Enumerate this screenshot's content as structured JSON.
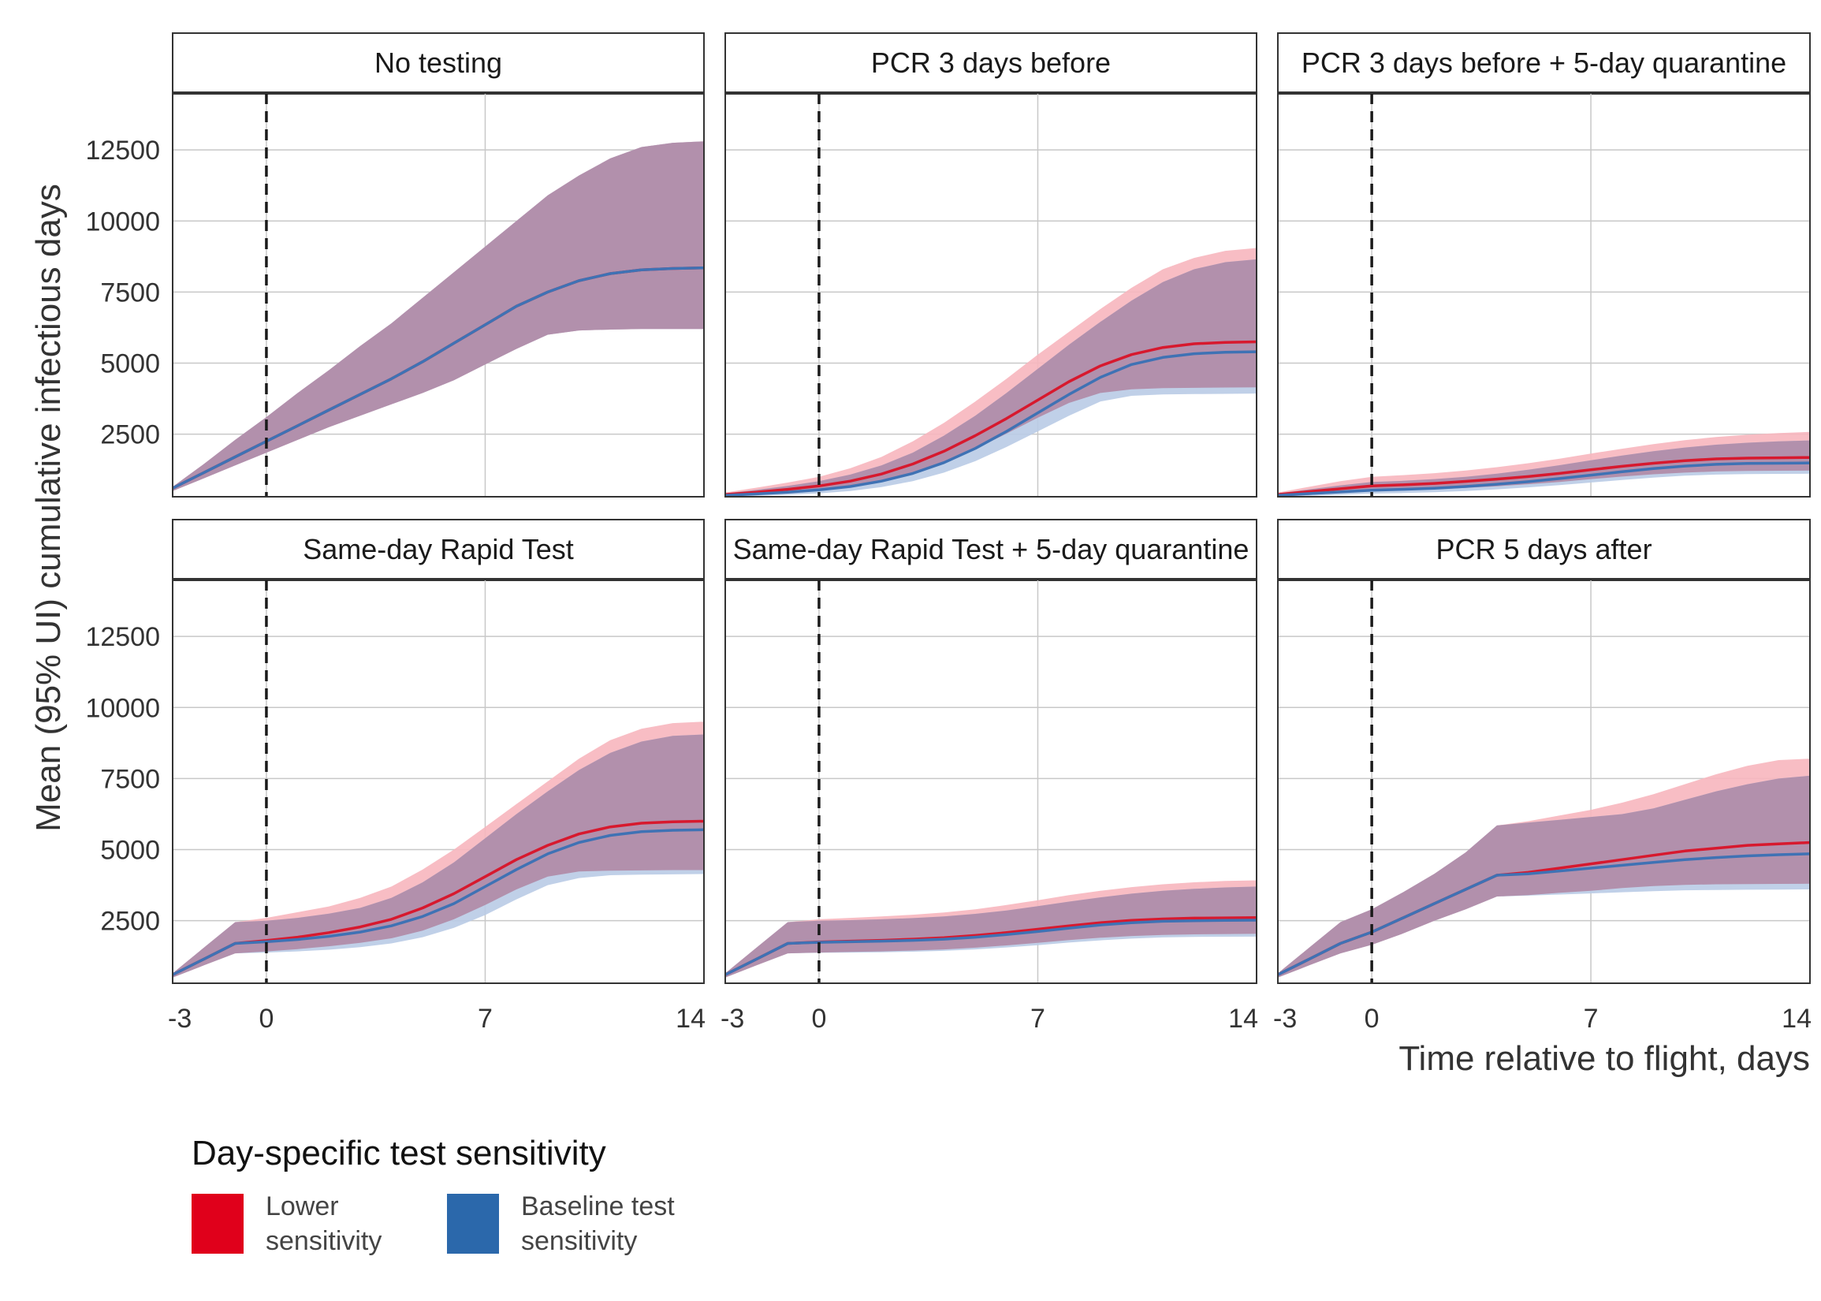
{
  "chart_data": {
    "type": "area",
    "xlabel": "Time relative to flight, days",
    "ylabel": "Mean (95% UI) cumulative infectious days",
    "xlim": [
      -3,
      14
    ],
    "ylim": [
      300,
      14500
    ],
    "x_ticks": [
      -3,
      0,
      7,
      14
    ],
    "y_ticks": [
      2500,
      5000,
      7500,
      10000,
      12500
    ],
    "vline_x": 0,
    "grid": true,
    "layout": "facets 2 rows x 3 columns, shared axes, legend bottom",
    "colors": {
      "Lower sensitivity": "#d7192e",
      "Baseline test sensitivity": "#3f72b4",
      "lower_ribbon": "#f7b6be",
      "baseline_ribbon": "#b9cbe6",
      "overlap_ribbon": "#b08aa6"
    },
    "legend": {
      "title": "Day-specific test sensitivity",
      "entries": [
        {
          "label_line1": "Lower",
          "label_line2": "sensitivity",
          "color": "#e0001b"
        },
        {
          "label_line1": "Baseline test",
          "label_line2": "sensitivity",
          "color": "#2b68ab"
        }
      ]
    },
    "panels": [
      {
        "title": "No testing",
        "x": [
          -3,
          -2,
          -1,
          0,
          1,
          2,
          3,
          4,
          5,
          6,
          7,
          8,
          9,
          10,
          11,
          12,
          13,
          14
        ],
        "series": [
          {
            "name": "Lower sensitivity",
            "values": [
              600,
              1150,
              1700,
              2250,
              2800,
              3350,
              3900,
              4450,
              5050,
              5700,
              6350,
              7000,
              7500,
              7900,
              8150,
              8280,
              8330,
              8350
            ],
            "lower": [
              500,
              950,
              1400,
              1850,
              2300,
              2750,
              3150,
              3550,
              3950,
              4400,
              4950,
              5500,
              6000,
              6150,
              6180,
              6200,
              6200,
              6200
            ],
            "upper": [
              650,
              1450,
              2300,
              3100,
              3950,
              4750,
              5600,
              6400,
              7300,
              8200,
              9100,
              10000,
              10900,
              11600,
              12200,
              12600,
              12750,
              12800
            ]
          },
          {
            "name": "Baseline test sensitivity",
            "values": [
              600,
              1150,
              1700,
              2250,
              2800,
              3350,
              3900,
              4450,
              5050,
              5700,
              6350,
              7000,
              7500,
              7900,
              8150,
              8280,
              8330,
              8350
            ],
            "lower": [
              500,
              950,
              1400,
              1850,
              2300,
              2750,
              3150,
              3550,
              3950,
              4400,
              4950,
              5500,
              6000,
              6150,
              6180,
              6200,
              6200,
              6200
            ],
            "upper": [
              650,
              1450,
              2300,
              3100,
              3950,
              4750,
              5600,
              6400,
              7300,
              8200,
              9100,
              10000,
              10900,
              11600,
              12200,
              12600,
              12750,
              12800
            ]
          }
        ]
      },
      {
        "title": "PCR 3 days before",
        "x": [
          -3,
          -2,
          -1,
          0,
          1,
          2,
          3,
          4,
          5,
          6,
          7,
          8,
          9,
          10,
          11,
          12,
          13,
          14
        ],
        "series": [
          {
            "name": "Lower sensitivity",
            "values": [
              380,
              460,
              560,
              680,
              850,
              1100,
              1450,
              1900,
              2450,
              3050,
              3700,
              4350,
              4900,
              5300,
              5550,
              5680,
              5730,
              5750
            ],
            "lower": [
              300,
              360,
              430,
              520,
              650,
              840,
              1120,
              1500,
              1980,
              2520,
              3080,
              3600,
              3950,
              4080,
              4120,
              4130,
              4140,
              4150
            ],
            "upper": [
              450,
              620,
              800,
              1000,
              1300,
              1700,
              2250,
              2900,
              3650,
              4450,
              5300,
              6100,
              6900,
              7650,
              8300,
              8700,
              8950,
              9050
            ]
          },
          {
            "name": "Baseline test sensitivity",
            "values": [
              350,
              400,
              460,
              540,
              660,
              850,
              1120,
              1500,
              2000,
              2600,
              3250,
              3900,
              4500,
              4950,
              5200,
              5330,
              5380,
              5400
            ],
            "lower": [
              300,
              330,
              370,
              420,
              500,
              640,
              850,
              1150,
              1550,
              2050,
              2600,
              3150,
              3650,
              3850,
              3900,
              3910,
              3920,
              3930
            ],
            "upper": [
              420,
              540,
              680,
              850,
              1080,
              1400,
              1850,
              2450,
              3150,
              3950,
              4800,
              5650,
              6450,
              7200,
              7850,
              8300,
              8550,
              8650
            ]
          }
        ]
      },
      {
        "title": "PCR 3 days before + 5-day quarantine",
        "x": [
          -3,
          -2,
          -1,
          0,
          1,
          2,
          3,
          4,
          5,
          6,
          7,
          8,
          9,
          10,
          11,
          12,
          13,
          14
        ],
        "series": [
          {
            "name": "Lower sensitivity",
            "values": [
              380,
              480,
              580,
              680,
              720,
              770,
              840,
              920,
              1010,
              1120,
              1250,
              1370,
              1480,
              1570,
              1630,
              1660,
              1670,
              1680
            ],
            "lower": [
              300,
              360,
              430,
              500,
              530,
              560,
              610,
              670,
              740,
              820,
              920,
              1010,
              1090,
              1150,
              1190,
              1210,
              1215,
              1220
            ],
            "upper": [
              450,
              650,
              850,
              1000,
              1060,
              1130,
              1220,
              1340,
              1480,
              1640,
              1820,
              1990,
              2150,
              2290,
              2400,
              2480,
              2540,
              2580
            ]
          },
          {
            "name": "Baseline test sensitivity",
            "values": [
              350,
              410,
              470,
              530,
              560,
              600,
              660,
              740,
              830,
              940,
              1060,
              1180,
              1290,
              1380,
              1440,
              1470,
              1480,
              1490
            ],
            "lower": [
              300,
              330,
              370,
              410,
              430,
              460,
              500,
              560,
              630,
              710,
              800,
              890,
              970,
              1040,
              1080,
              1100,
              1105,
              1110
            ],
            "upper": [
              420,
              560,
              700,
              820,
              860,
              920,
              1000,
              1110,
              1250,
              1410,
              1580,
              1750,
              1900,
              2030,
              2130,
              2200,
              2250,
              2280
            ]
          }
        ]
      },
      {
        "title": "Same-day Rapid Test",
        "x": [
          -3,
          -2,
          -1,
          0,
          1,
          2,
          3,
          4,
          5,
          6,
          7,
          8,
          9,
          10,
          11,
          12,
          13,
          14
        ],
        "series": [
          {
            "name": "Lower sensitivity",
            "values": [
              600,
              1150,
              1700,
              1800,
              1920,
              2080,
              2280,
              2550,
              2950,
              3450,
              4050,
              4650,
              5150,
              5550,
              5800,
              5930,
              5980,
              6000
            ],
            "lower": [
              500,
              930,
              1350,
              1420,
              1500,
              1600,
              1720,
              1880,
              2150,
              2550,
              3050,
              3600,
              4050,
              4230,
              4260,
              4270,
              4280,
              4280
            ],
            "upper": [
              650,
              1550,
              2450,
              2600,
              2800,
              3000,
              3300,
              3700,
              4300,
              5000,
              5800,
              6600,
              7400,
              8200,
              8850,
              9250,
              9450,
              9500
            ]
          },
          {
            "name": "Baseline test sensitivity",
            "values": [
              600,
              1150,
              1700,
              1760,
              1840,
              1950,
              2100,
              2320,
              2650,
              3100,
              3700,
              4300,
              4850,
              5250,
              5500,
              5630,
              5680,
              5700
            ],
            "lower": [
              500,
              930,
              1350,
              1380,
              1420,
              1480,
              1570,
              1700,
              1920,
              2250,
              2700,
              3250,
              3750,
              4000,
              4100,
              4120,
              4130,
              4140
            ],
            "upper": [
              650,
              1550,
              2450,
              2500,
              2600,
              2750,
              2950,
              3300,
              3850,
              4550,
              5400,
              6250,
              7050,
              7800,
              8400,
              8800,
              9000,
              9050
            ]
          }
        ]
      },
      {
        "title": "Same-day Rapid Test + 5-day quarantine",
        "x": [
          -3,
          -2,
          -1,
          0,
          1,
          2,
          3,
          4,
          5,
          6,
          7,
          8,
          9,
          10,
          11,
          12,
          13,
          14
        ],
        "series": [
          {
            "name": "Lower sensitivity",
            "values": [
              600,
              1150,
              1700,
              1750,
              1780,
              1810,
              1850,
              1900,
              1980,
              2080,
              2200,
              2320,
              2430,
              2510,
              2560,
              2590,
              2600,
              2610
            ],
            "lower": [
              500,
              930,
              1350,
              1380,
              1400,
              1420,
              1450,
              1490,
              1550,
              1630,
              1720,
              1820,
              1900,
              1960,
              2000,
              2020,
              2030,
              2040
            ],
            "upper": [
              650,
              1550,
              2450,
              2550,
              2600,
              2650,
              2710,
              2790,
              2900,
              3050,
              3220,
              3400,
              3550,
              3680,
              3780,
              3850,
              3900,
              3920
            ]
          },
          {
            "name": "Baseline test sensitivity",
            "values": [
              600,
              1150,
              1700,
              1740,
              1760,
              1780,
              1810,
              1850,
              1920,
              2010,
              2120,
              2240,
              2350,
              2430,
              2480,
              2500,
              2510,
              2520
            ],
            "lower": [
              500,
              930,
              1350,
              1370,
              1380,
              1390,
              1410,
              1440,
              1490,
              1560,
              1640,
              1730,
              1810,
              1870,
              1910,
              1930,
              1935,
              1940
            ],
            "upper": [
              650,
              1550,
              2450,
              2500,
              2520,
              2550,
              2590,
              2650,
              2740,
              2860,
              3010,
              3170,
              3320,
              3450,
              3550,
              3620,
              3670,
              3700
            ]
          }
        ]
      },
      {
        "title": "PCR 5 days after",
        "x": [
          -3,
          -2,
          -1,
          0,
          1,
          2,
          3,
          4,
          5,
          6,
          7,
          8,
          9,
          10,
          11,
          12,
          13,
          14
        ],
        "series": [
          {
            "name": "Lower sensitivity",
            "values": [
              600,
              1150,
              1700,
              2100,
              2600,
              3100,
              3600,
              4100,
              4200,
              4350,
              4500,
              4650,
              4800,
              4950,
              5050,
              5150,
              5200,
              5250
            ],
            "lower": [
              500,
              930,
              1350,
              1650,
              2050,
              2500,
              2900,
              3350,
              3400,
              3480,
              3550,
              3650,
              3720,
              3760,
              3780,
              3790,
              3795,
              3800
            ],
            "upper": [
              650,
              1550,
              2450,
              2900,
              3500,
              4150,
              4900,
              5850,
              6000,
              6200,
              6400,
              6650,
              6950,
              7300,
              7650,
              7950,
              8150,
              8200
            ]
          },
          {
            "name": "Baseline test sensitivity",
            "values": [
              600,
              1150,
              1700,
              2100,
              2600,
              3100,
              3600,
              4100,
              4150,
              4250,
              4350,
              4450,
              4550,
              4650,
              4720,
              4780,
              4820,
              4850
            ],
            "lower": [
              500,
              930,
              1350,
              1650,
              2050,
              2500,
              2900,
              3350,
              3380,
              3420,
              3460,
              3500,
              3540,
              3570,
              3580,
              3590,
              3595,
              3600
            ],
            "upper": [
              650,
              1550,
              2450,
              2900,
              3500,
              4150,
              4900,
              5850,
              5950,
              6050,
              6150,
              6250,
              6450,
              6750,
              7050,
              7300,
              7500,
              7600
            ]
          }
        ]
      }
    ]
  }
}
